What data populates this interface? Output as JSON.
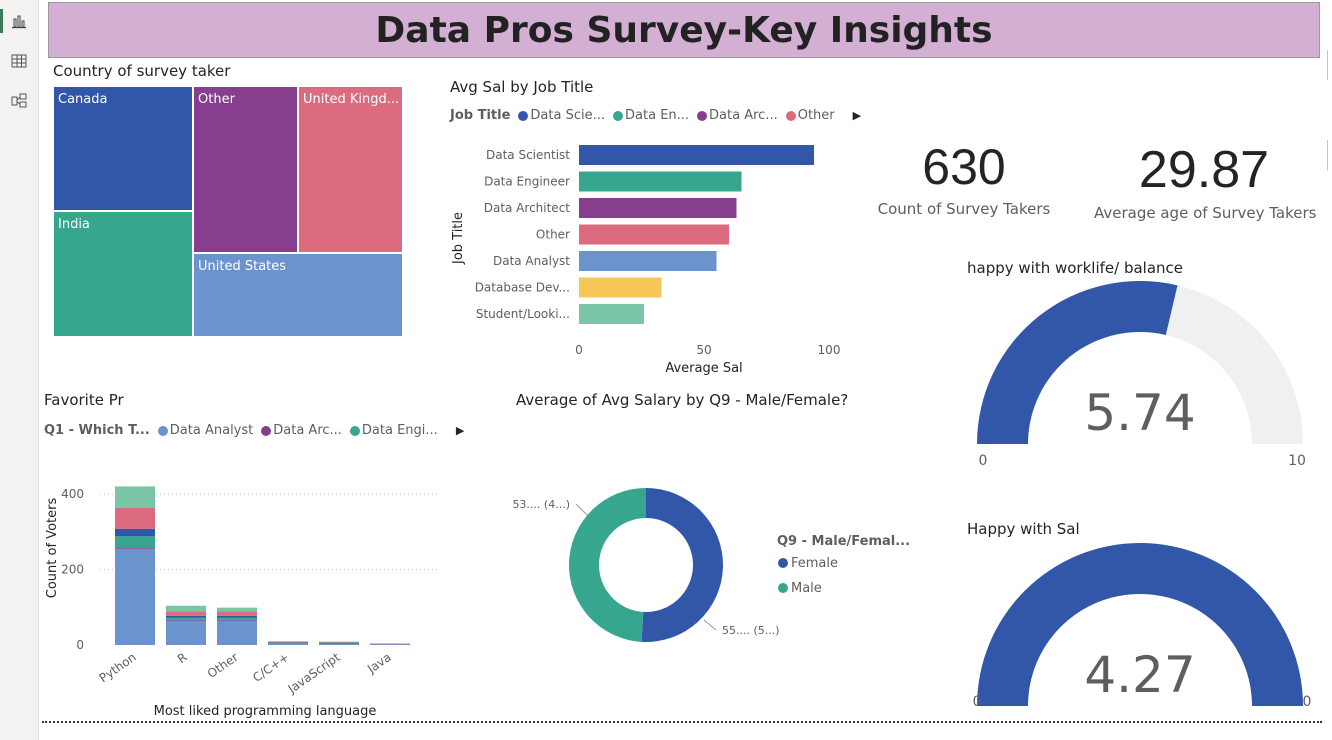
{
  "page_title": "Data Pros Survey-Key Insights",
  "sidebar": {
    "icons": [
      "report-view-icon",
      "table-view-icon",
      "model-view-icon"
    ]
  },
  "chart_data": [
    {
      "type": "treemap",
      "title": "Country of survey taker",
      "categories": [
        "Canada",
        "Other",
        "United Kingd...",
        "India",
        "United States"
      ],
      "colors": [
        "#3357a8",
        "#873e8e",
        "#dd6b7f",
        "#37a68f",
        "#6b93ce"
      ]
    },
    {
      "type": "bar",
      "orientation": "horizontal",
      "title": "Avg Sal by Job Title",
      "legend_title": "Job Title",
      "legend": [
        "Data Scie...",
        "Data En...",
        "Data Arc...",
        "Other"
      ],
      "categories": [
        "Data Scientist",
        "Data Engineer",
        "Data Architect",
        "Other",
        "Data Analyst",
        "Database Dev...",
        "Student/Looki..."
      ],
      "values": [
        94,
        65,
        63,
        60,
        55,
        33,
        26
      ],
      "colors": [
        "#3357a8",
        "#37a68f",
        "#873e8e",
        "#dd6b7f",
        "#6b93ce",
        "#f5c658",
        "#79c5a6"
      ],
      "xlabel": "Average Sal",
      "ylabel": "Job Title",
      "xlim": [
        0,
        100
      ],
      "xticks": [
        "0",
        "50",
        "100"
      ]
    },
    {
      "type": "card",
      "value": "630",
      "label": "Count of Survey Takers"
    },
    {
      "type": "card",
      "value": "29.87",
      "label": "Average age of Survey Takers"
    },
    {
      "type": "gauge",
      "title": "happy with worklife/ balance",
      "value": 5.74,
      "value_label": "5.74",
      "min": 0,
      "max": 10,
      "min_label": "0",
      "max_label": "10",
      "color": "#3357a8"
    },
    {
      "type": "bar",
      "stacked": true,
      "title": "Favorite Pr",
      "legend_title": "Q1 - Which T...",
      "legend": [
        "Data Analyst",
        "Data Arc...",
        "Data Engi..."
      ],
      "categories": [
        "Python",
        "R",
        "Other",
        "C/C++",
        "JavaScript",
        "Java"
      ],
      "series": [
        {
          "color": "#6b93ce",
          "values": [
            255,
            65,
            65,
            5,
            4,
            3
          ]
        },
        {
          "color": "#873e8e",
          "values": [
            3,
            2,
            2,
            2,
            1,
            0
          ]
        },
        {
          "color": "#37a68f",
          "values": [
            30,
            5,
            5,
            1,
            2,
            0
          ]
        },
        {
          "color": "#3357a8",
          "values": [
            20,
            5,
            5,
            0,
            0,
            0
          ]
        },
        {
          "color": "#dd6b7f",
          "values": [
            55,
            12,
            12,
            1,
            1,
            1
          ]
        },
        {
          "color": "#79c5a6",
          "values": [
            57,
            15,
            10,
            1,
            1,
            0
          ]
        }
      ],
      "xlabel": "Most liked programming language",
      "ylabel": "Count of Voters",
      "ylim": [
        0,
        450
      ],
      "yticks": [
        "0",
        "200",
        "400"
      ]
    },
    {
      "type": "donut",
      "title": "Average of Avg Salary by Q9 - Male/Female?",
      "legend_title": "Q9 - Male/Femal...",
      "slices": [
        {
          "name": "Female",
          "value": 55,
          "label": "55.... (5...)",
          "color": "#3357a8"
        },
        {
          "name": "Male",
          "value": 53,
          "label": "53.... (4...)",
          "color": "#37a68f"
        }
      ]
    },
    {
      "type": "gauge",
      "title": "Happy with Sal",
      "value": 4.27,
      "value_label": "4.27",
      "min": 0,
      "max": 0,
      "min_label": "0",
      "max_label": "0",
      "color": "#3357a8"
    }
  ]
}
